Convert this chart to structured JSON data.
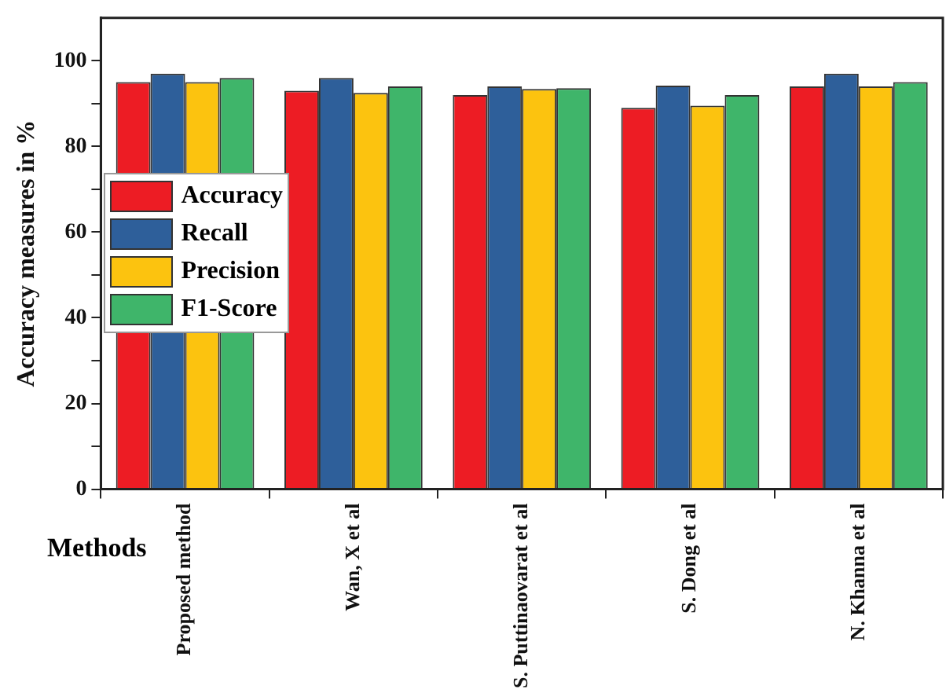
{
  "chart_data": {
    "type": "bar",
    "xlabel": "Methods",
    "ylabel": "Accuracy measures in %",
    "categories": [
      "Proposed method",
      "Wan, X et al",
      "S. Puttinaovarat et al",
      "S. Dong et al",
      "N. Khanna et al"
    ],
    "series": [
      {
        "name": "Accuracy",
        "color": "#ed1c24",
        "values": [
          95,
          93,
          92,
          89,
          94
        ]
      },
      {
        "name": "Recall",
        "color": "#2e5f9a",
        "values": [
          97,
          96,
          94,
          94.2,
          97
        ]
      },
      {
        "name": "Precision",
        "color": "#fcc30f",
        "values": [
          95,
          92.5,
          93.4,
          89.5,
          94
        ]
      },
      {
        "name": "F1-Score",
        "color": "#3fb56a",
        "values": [
          96,
          94,
          93.6,
          92,
          95
        ]
      }
    ],
    "ylim": [
      0,
      110
    ],
    "yticks": [
      0,
      {
        "value": 10,
        "label": null
      },
      20,
      {
        "value": 30,
        "label": null
      },
      40,
      {
        "value": 50,
        "label": null
      },
      60,
      {
        "value": 70,
        "label": null
      },
      80,
      {
        "value": 90,
        "label": null
      },
      100
    ],
    "grid": false,
    "legend": "left"
  }
}
